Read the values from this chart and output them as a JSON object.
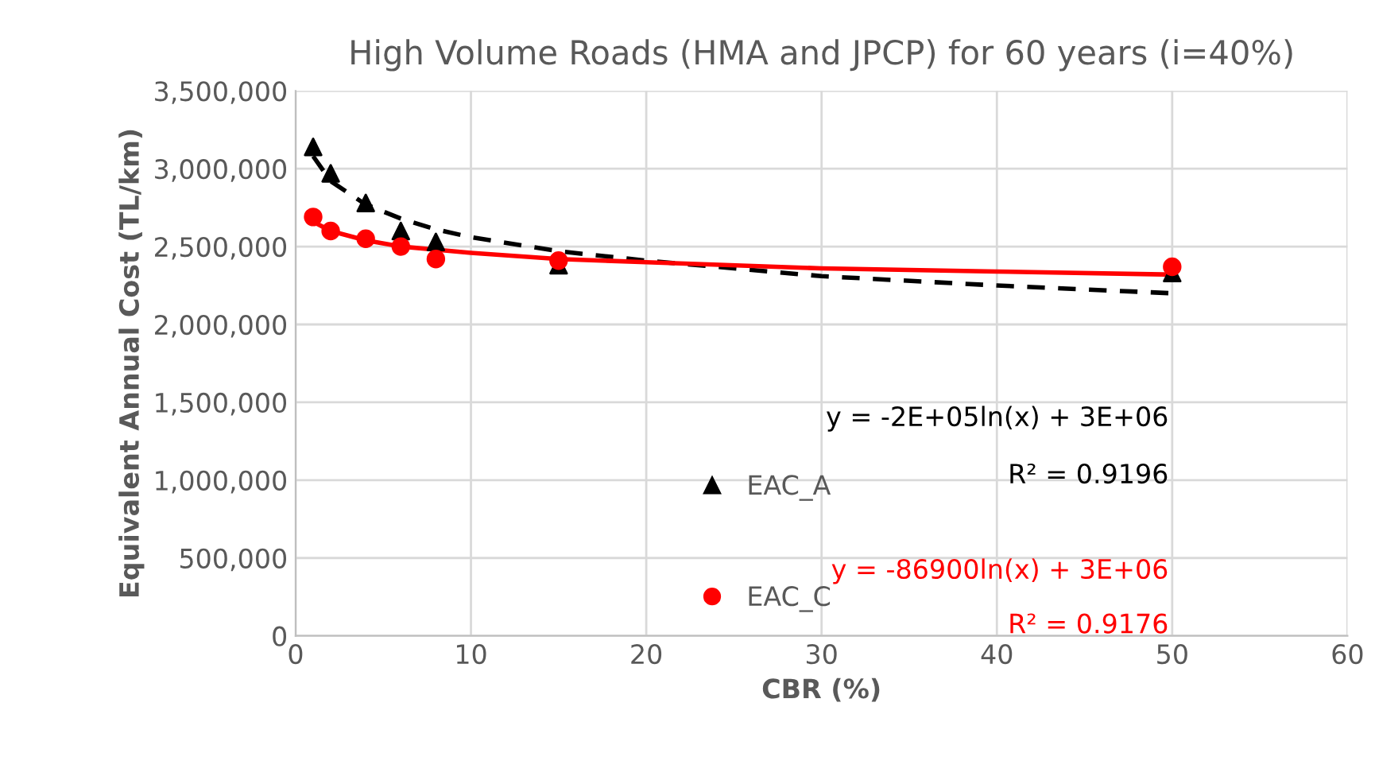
{
  "chart_data": {
    "type": "scatter",
    "title": "High Volume Roads (HMA and JPCP) for 60 years (i=40%)",
    "xlabel": "CBR (%)",
    "ylabel": "Equivalent Annual Cost (TL/km)",
    "x": [
      1,
      2,
      4,
      6,
      8,
      15,
      50
    ],
    "series": [
      {
        "name": "EAC_A",
        "color": "#000000",
        "marker": "triangle",
        "values": [
          3140000,
          2970000,
          2780000,
          2600000,
          2530000,
          2380000,
          2330000
        ]
      },
      {
        "name": "EAC_C",
        "color": "#ff0000",
        "marker": "circle",
        "values": [
          2690000,
          2600000,
          2550000,
          2500000,
          2420000,
          2410000,
          2370000
        ]
      },
      {
        "type": "line",
        "color": "#000000",
        "line_style": "dashed",
        "x": [
          1,
          2,
          4,
          6,
          8,
          10,
          15,
          20,
          30,
          40,
          50
        ],
        "values": [
          3080000,
          2920000,
          2770000,
          2680000,
          2610000,
          2560000,
          2470000,
          2410000,
          2310000,
          2250000,
          2200000
        ]
      },
      {
        "type": "line",
        "color": "#ff0000",
        "line_style": "solid",
        "x": [
          1,
          2,
          4,
          6,
          8,
          10,
          15,
          20,
          30,
          40,
          50
        ],
        "values": [
          2660000,
          2600000,
          2540000,
          2500000,
          2480000,
          2460000,
          2420000,
          2400000,
          2360000,
          2340000,
          2320000
        ]
      }
    ],
    "annotations": [
      "y = -2E+05ln(x) + 3E+06",
      "R² = 0.9196",
      "y = -86900ln(x) + 3E+06",
      "R² = 0.9176"
    ],
    "xlim": [
      0,
      60
    ],
    "xticks": [
      0,
      10,
      20,
      30,
      40,
      50,
      60
    ],
    "ylim": [
      0,
      3500000
    ],
    "yticks": [
      {
        "value": 0,
        "label": "0"
      },
      {
        "value": 500000,
        "label": "500,000"
      },
      {
        "value": 1000000,
        "label": "1,000,000"
      },
      {
        "value": 1500000,
        "label": "1,500,000"
      },
      {
        "value": 2000000,
        "label": "2,000,000"
      },
      {
        "value": 2500000,
        "label": "2,500,000"
      },
      {
        "value": 3000000,
        "label": "3,000,000"
      },
      {
        "value": 3500000,
        "label": "3,500,000"
      }
    ],
    "grid": true,
    "legend": "bottom"
  }
}
